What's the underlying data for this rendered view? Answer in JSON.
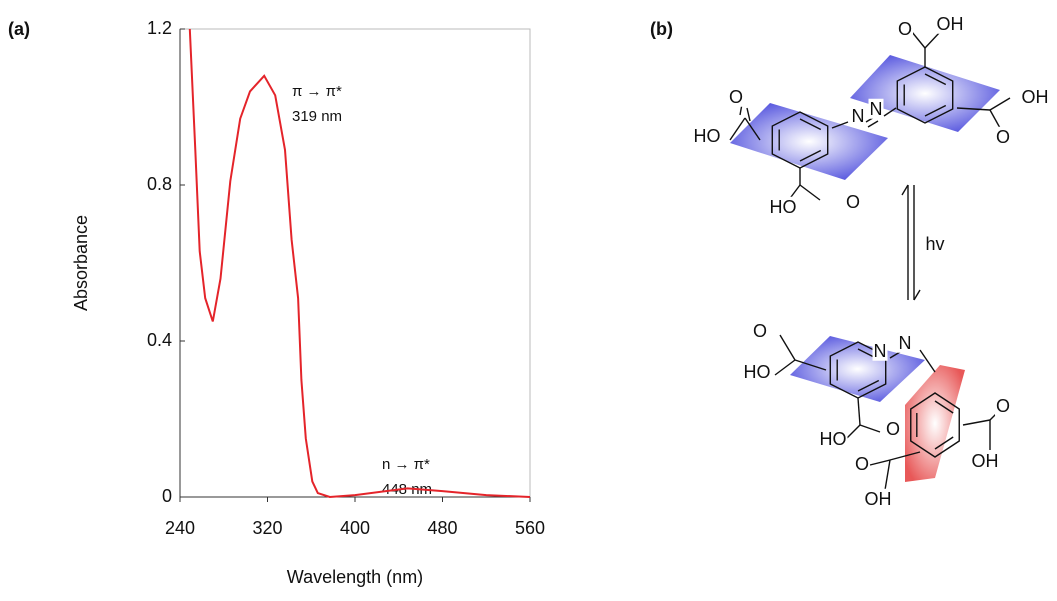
{
  "panel_labels": [
    "(a)",
    "(b)"
  ],
  "chart_data": {
    "type": "line",
    "x_label": "Wavelength (nm)",
    "y_label": "Absorbance",
    "x": [
      249,
      254,
      258,
      263,
      270,
      277,
      286,
      295,
      304,
      317,
      327,
      336,
      342,
      348,
      351,
      355,
      361,
      366,
      377,
      400,
      448,
      480,
      520,
      560
    ],
    "values": [
      1.2,
      0.89,
      0.63,
      0.51,
      0.45,
      0.56,
      0.81,
      0.97,
      1.04,
      1.08,
      1.03,
      0.89,
      0.66,
      0.51,
      0.3,
      0.15,
      0.04,
      0.01,
      0,
      0.005,
      0.022,
      0.015,
      0.005,
      0
    ],
    "color": "#e4242a",
    "xlim": [
      240,
      560
    ],
    "xticks": [
      240,
      320,
      400,
      480,
      560
    ],
    "ylim": [
      0,
      1.2
    ],
    "yticks": [
      0,
      0.4,
      0.8,
      1.2
    ],
    "annotations": [
      "π → π*",
      "319 nm",
      "n → π*",
      "448 nm"
    ]
  },
  "diagram": {
    "labels": [
      "O",
      "HO",
      "HO",
      "O",
      "N",
      "N",
      "O",
      "OH",
      "O",
      "OH",
      "hv",
      "O",
      "HO",
      "N",
      "N",
      "HO",
      "O",
      "O",
      "OH",
      "O",
      "OH"
    ]
  }
}
